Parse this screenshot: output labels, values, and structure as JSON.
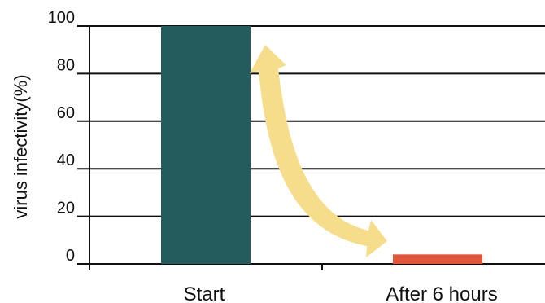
{
  "chart_data": {
    "type": "bar",
    "categories": [
      "Start",
      "After 6 hours"
    ],
    "values": [
      100,
      4
    ],
    "ylabel": "virus infectivity(%)",
    "ylim": [
      0,
      100
    ],
    "yticks": [
      0,
      20,
      40,
      60,
      80,
      100
    ],
    "grid": "horizontal",
    "bar_colors": [
      "#245c5d",
      "#e0553b"
    ],
    "annotation": {
      "type": "curved-arrow",
      "from": "Start",
      "to": "After 6 hours",
      "color": "#f6dd8c"
    }
  }
}
